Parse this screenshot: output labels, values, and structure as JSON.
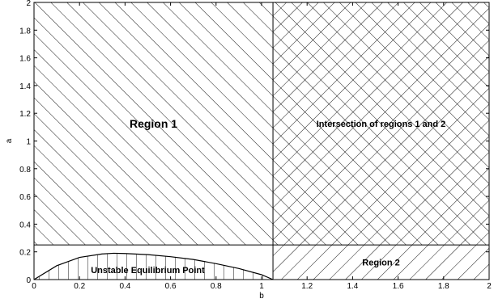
{
  "chart_data": {
    "type": "area",
    "xlabel": "b",
    "ylabel": "a",
    "xlim": [
      0,
      2
    ],
    "ylim": [
      0,
      2
    ],
    "x_ticks": [
      "0",
      "0.2",
      "0.4",
      "0.6",
      "0.8",
      "1",
      "1.2",
      "1.4",
      "1.6",
      "1.8",
      "2"
    ],
    "y_ticks": [
      "0",
      "0.2",
      "0.4",
      "0.6",
      "0.8",
      "1",
      "1.2",
      "1.4",
      "1.6",
      "1.8",
      "2"
    ],
    "grid": false,
    "region1": {
      "label": "Region 1",
      "a_min": 0.25,
      "a_max": 2,
      "hatch": "forward-diagonal"
    },
    "region2": {
      "label": "Region 2",
      "b_min": 1.05,
      "b_max": 2,
      "hatch": "backward-diagonal"
    },
    "intersection": {
      "label": "Intersection of regions 1 and 2",
      "hatch": "cross"
    },
    "unstable": {
      "label": "Unstable Equilibrium Point",
      "hatch": "vertical",
      "boundary": {
        "b": [
          0,
          0.1,
          0.2,
          0.3,
          0.35,
          0.4,
          0.5,
          0.6,
          0.7,
          0.8,
          0.9,
          1.0,
          1.05
        ],
        "a": [
          0,
          0.1,
          0.16,
          0.185,
          0.19,
          0.188,
          0.18,
          0.165,
          0.145,
          0.115,
          0.08,
          0.035,
          0
        ]
      }
    }
  }
}
